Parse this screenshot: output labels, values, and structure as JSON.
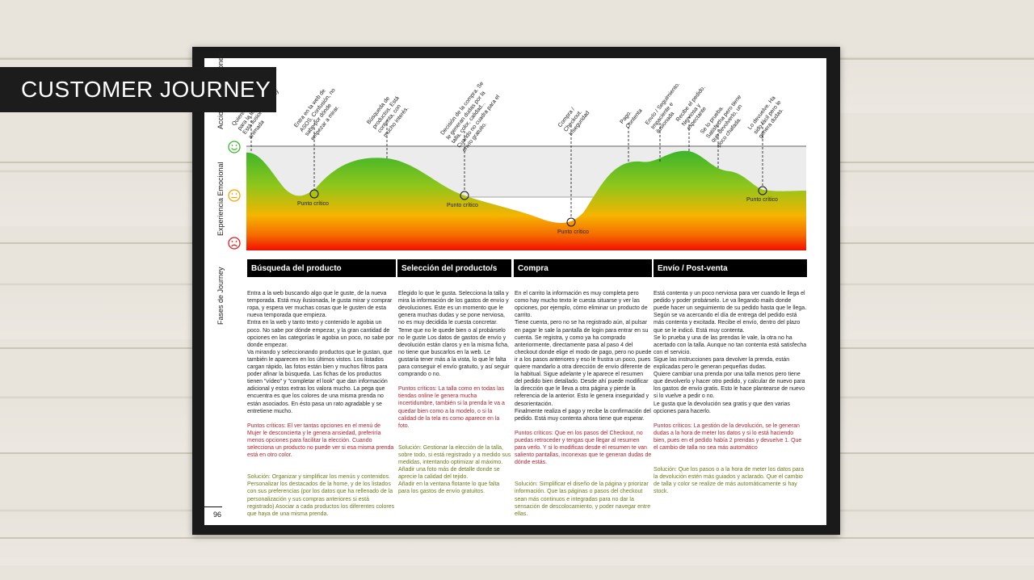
{
  "banner": {
    "title": "CUSTOMER JOURNEY"
  },
  "page_number": "96",
  "side_labels": {
    "acciones": "Acciones / sensaciones",
    "experiencia": "Experiencia Emocional",
    "fases": "Fases de Journey"
  },
  "emotion_icons": [
    "happy-face-icon",
    "neutral-face-icon",
    "sad-face-icon"
  ],
  "colors": {
    "good": "#3cb52b",
    "mid": "#f5b400",
    "bad": "#f20f00",
    "critical_text": "#b4232d",
    "solution_text": "#6e7a1a"
  },
  "annotations": [
    "Quiere algo nuevo para la temporada. Está ilusionada y muy animada",
    "Entra en la web de ASOS. Confusión, no sabe por dónde empezar a mirar.",
    "Búsqueda de productos. Está contenta, con mucho interés.",
    "Decisión de la compra. Se le generan dudas por la talla, color, calidad... Cuando no cuadra para el envío gratuito.",
    "Compra / Checkout. Inseguridad",
    "Pago. Contenta",
    "Envío / Seguimiento. Impaciente e ilusionada",
    "Recibe el pedido. Nerviosa y expectante",
    "Se lo prueba. Satisfecha pero tiene que devolverlo, un poco chafada.",
    "Lo devuelve. Ha sido fácil pero le genera dudas."
  ],
  "critical_point_label": "Punto crítico",
  "phases": [
    {
      "title": "Búsqueda del producto",
      "body": "Entra a la web buscando algo que le guste, de la nueva temporada. Está muy ilusionada, le gusta mirar y comprar ropa, y espera ver muchas cosas que le gusten de esta nueva temporada que empieza.\nEntra en la web y tanto texto y contenido le agobia un poco. No sabe por dónde empezar, y la gran cantidad de opciones en las categorías le agobia un poco, no sabe por donde empezar.\nVa mirando y seleccionando productos que le gustan, que también le aparecen en los últimos vistos. Los listados cargan rápido, las fotos están bien y muchos filtros para poder afinar la búsqueda. Las fichas de los productos tienen \"vídeo\" y \"completar el look\" que dan información adicional y estos extras los valora mucho. La pega que encuentra es que los colores de una misma prenda no están asociados. En ésto pasa un rato agradable y se entretiene mucho.",
      "critical": "Puntos críticos: El ver tantas opciones en el menú de Mujer le desconcierta y le genera ansiedad, preferiría menos opciones para facilitar la elección. Cuando selecciona un producto no puede ver si esa misma prenda está en otro color.",
      "solution": "Solución: Organizar y simplificar los menús y contenidos. Personalizar los destacados de la home, y de los listados con sus preferencias (por los datos que ha rellenado de la personalización y sus compras anteriores si está registrado) Asociar a cada productos los diferentes colores que haya de una misma prenda."
    },
    {
      "title": "Selección del producto/s",
      "body": "Elegido lo que le gusta. Selecciona la talla y mira la información de los gastos de envío y devoluciones. Este es un momento que le genera muchas dudas y se pone nerviosa, no es muy decidida le cuesta concretar.  Teme que no le quede bien o al probárselo no le guste Los datos de gastos de envío y devolución están claros y en la misma ficha, no tiene que buscarlos en la web. Le gustaría tener más a la vista, lo que le falta para conseguir el envío gratuito, y así seguir comprando o no.",
      "critical": "Puntos críticos: La talla como en todas las tiendas online le genera mucha incertidumbre, también si la prenda le va a quedar bien como a la modelo, o si la calidad de la tela es como aparece en la foto.",
      "solution": "Solución: Gestionar la elección de la talla, sobre todo, si está registrado y a medido sus medidas, intentando optimizar al máximo. Añadir una foto más de detalle donde se aprecie la calidad del tejido.\nAñadir en la ventana flotante lo que falta para los gastos de envío gratuitos."
    },
    {
      "title": "Compra",
      "body": "En el carrito la información es muy completa pero como hay mucho texto le cuesta situarse y ver las opciones, por ejemplo, cómo eliminar un producto de carrito.\nTiene cuenta, pero no se ha registrado aún, al pulsar en pagar le sale la pantalla de login para entrar en su cuenta. Se registra, y como ya ha comprado anteriormente, directamente pasa al paso 4 del checkout donde elige el modo de pago, pero no puede ir a los pasos anteriores y eso le frustra un poco, pues quiere mandarlo a otra dirección de envío diferente de la habitual. Sigue adelante y le aparece el resumen del pedido bien detallado. Desde ahí puede modificar la dirección que le lleva a otra página y pierde la referencia de la anterior. Esto le genera inseguridad y desorientación.\nFinalmente realiza el pago y recibe la confirmación del pedido. Está muy contenta ahora tiene que esperar.",
      "critical": "Puntos críticos:  Que en los pasos del Checkout, no puedas retroceder y tengas que llegar al resumen para verlo. Y si lo modificas desde el resumen te van saliento pantallas, inconexas que te generan dudas de dónde estás.",
      "solution": "Solución: Simplificar el diseño de la página y priorizar información. Que las páginas o pasos del checkout sean más continuos e integradas para no dar la sensación de descolocamiento, y poder navegar entre ellas."
    },
    {
      "title": "Envío / Post-venta",
      "body": "Está contenta y un poco nerviosa para ver cuando le llega el pedido y poder probárselo. Le va llegando mails donde puede hacer un seguimiento de su pedido hasta que le llega. Según se va acercando el día de entrega del pedido está más contenta y excitada. Recibe el envío, dentro del plazo que se le indicó. Está muy contenta.\nSe lo prueba y una de las prendas le vale, la otra no ha acertado con la talla. Aunque no tan contenta está satisfecha con el servicio.\nSigue las instrucciones para devolver la prenda, están explicadas pero le generan pequeñas dudas.\nQuiere cambiar una prenda por una talla menos pero tiene que devolverlo y hacer otro pedido, y calcular de nuevo para  los gastos de envío gratis. Esto le hace plantearse de nuevo si lo vuelve a pedir o no.\nLe gusta que la devolución sea gratis y que den varias opciones para hacerlo.",
      "critical": "Puntos críticos: La gestión de la devolución, se le generan dudas a la hora de meter los datos y si lo está haciendo bien, pues en el pedido había 2 prendas y devuelve 1. Que el cambio de talla no sea más automático",
      "solution": "Solución: Que los pasos o a la hora de meter los datos para la devolución estén más guiados y aclarado. Que el cambio de talla y color se realize de más automáticamente si hay stock."
    }
  ]
}
